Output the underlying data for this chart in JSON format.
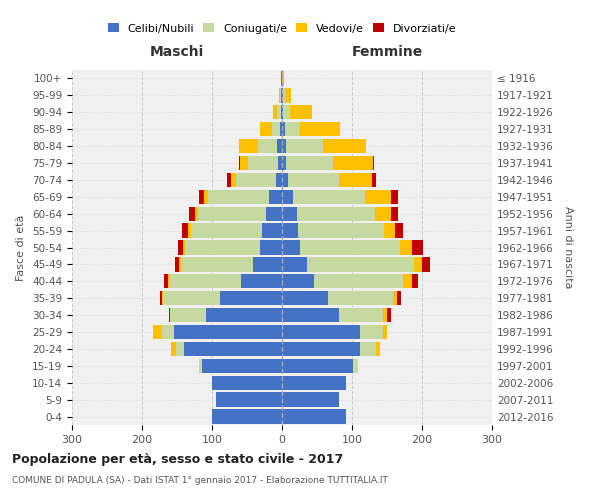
{
  "age_groups": [
    "0-4",
    "5-9",
    "10-14",
    "15-19",
    "20-24",
    "25-29",
    "30-34",
    "35-39",
    "40-44",
    "45-49",
    "50-54",
    "55-59",
    "60-64",
    "65-69",
    "70-74",
    "75-79",
    "80-84",
    "85-89",
    "90-94",
    "95-99",
    "100+"
  ],
  "birth_years": [
    "2012-2016",
    "2007-2011",
    "2002-2006",
    "1997-2001",
    "1992-1996",
    "1987-1991",
    "1982-1986",
    "1977-1981",
    "1972-1976",
    "1967-1971",
    "1962-1966",
    "1957-1961",
    "1952-1956",
    "1947-1951",
    "1942-1946",
    "1937-1941",
    "1932-1936",
    "1927-1931",
    "1922-1926",
    "1917-1921",
    "≤ 1916"
  ],
  "male_celibi": [
    100,
    95,
    100,
    115,
    140,
    155,
    108,
    88,
    58,
    42,
    32,
    28,
    23,
    18,
    8,
    6,
    7,
    3,
    2,
    1,
    1
  ],
  "male_coniugati": [
    0,
    0,
    0,
    3,
    12,
    17,
    52,
    82,
    102,
    102,
    107,
    102,
    97,
    88,
    58,
    42,
    27,
    12,
    5,
    2,
    0
  ],
  "male_vedovi": [
    0,
    0,
    0,
    0,
    6,
    12,
    0,
    1,
    3,
    3,
    3,
    4,
    4,
    6,
    7,
    12,
    27,
    16,
    6,
    1,
    0
  ],
  "male_divorziati": [
    0,
    0,
    0,
    0,
    0,
    0,
    2,
    4,
    6,
    6,
    6,
    9,
    9,
    6,
    5,
    2,
    0,
    0,
    0,
    0,
    0
  ],
  "female_celibi": [
    92,
    82,
    92,
    102,
    112,
    112,
    82,
    66,
    46,
    36,
    26,
    23,
    21,
    16,
    9,
    6,
    6,
    4,
    2,
    1,
    0
  ],
  "female_coniugati": [
    0,
    0,
    0,
    6,
    22,
    32,
    62,
    92,
    127,
    152,
    142,
    122,
    112,
    102,
    72,
    67,
    52,
    22,
    9,
    3,
    0
  ],
  "female_vedovi": [
    0,
    0,
    0,
    0,
    6,
    6,
    6,
    6,
    12,
    12,
    17,
    17,
    22,
    37,
    47,
    57,
    62,
    57,
    32,
    9,
    3
  ],
  "female_divorziati": [
    0,
    0,
    0,
    0,
    0,
    0,
    6,
    6,
    9,
    11,
    16,
    11,
    11,
    11,
    6,
    2,
    0,
    0,
    0,
    0,
    0
  ],
  "color_celibi": "#4472c4",
  "color_coniugati": "#c5d9a0",
  "color_vedovi": "#ffc000",
  "color_divorziati": "#c00000",
  "title": "Popolazione per età, sesso e stato civile - 2017",
  "subtitle": "COMUNE DI PADULA (SA) - Dati ISTAT 1° gennaio 2017 - Elaborazione TUTTITALIA.IT",
  "xlabel_left": "Maschi",
  "xlabel_right": "Femmine",
  "ylabel_left": "Fasce di età",
  "ylabel_right": "Anni di nascita",
  "xlim": 300,
  "bg_color": "#f0f0f0",
  "grid_color": "#cccccc"
}
